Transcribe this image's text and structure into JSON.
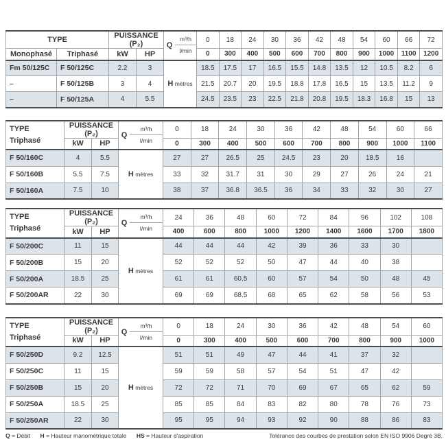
{
  "labels": {
    "type": "TYPE",
    "monophase": "Monophasé",
    "triphase": "Triphasé",
    "puissance": "PUISSANCE (P₂)",
    "kw": "kW",
    "hp": "HP",
    "q": "Q",
    "m3h": "m³/h",
    "lmin": "l/min",
    "h": "H",
    "metres": "mètres"
  },
  "colors": {
    "row_shade": "#dce3e9",
    "border_thin": "#9fa3a7",
    "border_thick": "#4a4b4d",
    "text": "#39393b"
  },
  "tables": [
    {
      "two_type_columns": true,
      "m3h": [
        "0",
        "18",
        "24",
        "30",
        "36",
        "42",
        "48",
        "54",
        "60",
        "66",
        "72"
      ],
      "lmin": [
        "0",
        "300",
        "400",
        "500",
        "600",
        "700",
        "800",
        "900",
        "1000",
        "1100",
        "1200"
      ],
      "rows": [
        {
          "monophase": "Fm 50/125C",
          "triphase": "F 50/125C",
          "kw": "2.2",
          "hp": "3",
          "h": [
            "18.5",
            "17.5",
            "17",
            "16.5",
            "15.5",
            "14.8",
            "13.5",
            "12",
            "10.5",
            "8.2",
            "6"
          ]
        },
        {
          "monophase": "–",
          "triphase": "F 50/125B",
          "kw": "3",
          "hp": "4",
          "h": [
            "21.5",
            "20.7",
            "20",
            "19.5",
            "18.8",
            "17.8",
            "16.5",
            "15",
            "13.5",
            "11.2",
            "9"
          ]
        },
        {
          "monophase": "–",
          "triphase": "F 50/125A",
          "kw": "4",
          "hp": "5.5",
          "h": [
            "24.5",
            "23.5",
            "23",
            "22.5",
            "21.8",
            "20.8",
            "19.5",
            "18.3",
            "16.8",
            "15",
            "13"
          ]
        }
      ]
    },
    {
      "two_type_columns": false,
      "m3h": [
        "0",
        "18",
        "24",
        "30",
        "36",
        "42",
        "48",
        "54",
        "60",
        "66"
      ],
      "lmin": [
        "0",
        "300",
        "400",
        "500",
        "600",
        "700",
        "800",
        "900",
        "1000",
        "1100"
      ],
      "rows": [
        {
          "triphase": "F 50/160C",
          "kw": "4",
          "hp": "5.5",
          "h": [
            "27",
            "27",
            "26.5",
            "25",
            "24.5",
            "23",
            "20",
            "18.5",
            "16",
            ""
          ]
        },
        {
          "triphase": "F 50/160B",
          "kw": "5.5",
          "hp": "7.5",
          "h": [
            "33",
            "32",
            "31.7",
            "31",
            "30",
            "29",
            "27",
            "26",
            "24",
            "21"
          ]
        },
        {
          "triphase": "F 50/160A",
          "kw": "7.5",
          "hp": "10",
          "h": [
            "38",
            "37",
            "36.8",
            "36.5",
            "36",
            "34",
            "33",
            "32",
            "30",
            "27"
          ]
        }
      ]
    },
    {
      "two_type_columns": false,
      "m3h": [
        "24",
        "36",
        "48",
        "60",
        "72",
        "84",
        "96",
        "102",
        "108"
      ],
      "lmin": [
        "400",
        "600",
        "800",
        "1000",
        "1200",
        "1400",
        "1600",
        "1700",
        "1800"
      ],
      "rows": [
        {
          "triphase": "F 50/200C",
          "kw": "11",
          "hp": "15",
          "h": [
            "44",
            "44",
            "44",
            "42",
            "39",
            "36",
            "33",
            "30",
            ""
          ]
        },
        {
          "triphase": "F 50/200B",
          "kw": "15",
          "hp": "20",
          "h": [
            "52",
            "52",
            "52",
            "50",
            "47",
            "44",
            "40",
            "38",
            ""
          ]
        },
        {
          "triphase": "F 50/200A",
          "kw": "18.5",
          "hp": "25",
          "h": [
            "61",
            "61",
            "60.5",
            "60",
            "57",
            "54",
            "50",
            "48",
            "45"
          ]
        },
        {
          "triphase": "F 50/200AR",
          "kw": "22",
          "hp": "30",
          "h": [
            "69",
            "69",
            "68.5",
            "68",
            "65",
            "62",
            "58",
            "56",
            "53"
          ]
        }
      ]
    },
    {
      "two_type_columns": false,
      "m3h": [
        "0",
        "18",
        "24",
        "30",
        "36",
        "42",
        "48",
        "54",
        "60"
      ],
      "lmin": [
        "0",
        "300",
        "400",
        "500",
        "600",
        "700",
        "800",
        "900",
        "1000"
      ],
      "rows": [
        {
          "triphase": "F 50/250D",
          "kw": "9.2",
          "hp": "12.5",
          "h": [
            "51",
            "51",
            "49",
            "47",
            "44",
            "41",
            "37",
            "32",
            ""
          ]
        },
        {
          "triphase": "F 50/250C",
          "kw": "11",
          "hp": "15",
          "h": [
            "59",
            "59",
            "58",
            "57",
            "54",
            "51",
            "47",
            "42",
            ""
          ]
        },
        {
          "triphase": "F 50/250B",
          "kw": "15",
          "hp": "20",
          "h": [
            "72",
            "72",
            "71",
            "70",
            "69",
            "67",
            "65",
            "62",
            "59"
          ]
        },
        {
          "triphase": "F 50/250A",
          "kw": "18.5",
          "hp": "25",
          "h": [
            "85",
            "85",
            "84",
            "83",
            "82",
            "80",
            "78",
            "76",
            "73"
          ]
        },
        {
          "triphase": "F 50/250AR",
          "kw": "22",
          "hp": "30",
          "h": [
            "95",
            "95",
            "94",
            "93",
            "92",
            "90",
            "88",
            "86",
            "83"
          ]
        }
      ]
    }
  ],
  "footer": {
    "legend": [
      {
        "abbr": "Q",
        "text": "= Débit"
      },
      {
        "abbr": "H",
        "text": "= Hauteur manométrique totale"
      },
      {
        "abbr": "HS",
        "text": "= Hauteur d'aspiration"
      }
    ],
    "tolerance": "Tolérance des courbes de prestation selon EN ISO 9906 Degré 3B."
  }
}
